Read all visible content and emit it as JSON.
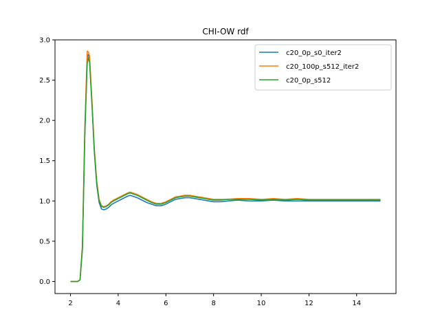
{
  "chart_data": {
    "type": "line",
    "title": "CHI-OW rdf",
    "xlabel": "",
    "ylabel": "",
    "xlim": [
      1.35,
      15.65
    ],
    "ylim": [
      -0.15,
      3.0
    ],
    "xticks": [
      2,
      4,
      6,
      8,
      10,
      12,
      14
    ],
    "yticks": [
      0.0,
      0.5,
      1.0,
      1.5,
      2.0,
      2.5,
      3.0
    ],
    "xtick_labels": [
      "2",
      "4",
      "6",
      "8",
      "10",
      "12",
      "14"
    ],
    "ytick_labels": [
      "0.0",
      "0.5",
      "1.0",
      "1.5",
      "2.0",
      "2.5",
      "3.0"
    ],
    "grid": false,
    "legend_position": "top-right",
    "x": [
      2.0,
      2.1,
      2.2,
      2.3,
      2.4,
      2.5,
      2.6,
      2.7,
      2.75,
      2.8,
      2.9,
      3.0,
      3.1,
      3.2,
      3.3,
      3.4,
      3.5,
      3.6,
      3.7,
      3.8,
      4.0,
      4.2,
      4.4,
      4.5,
      4.6,
      4.8,
      5.0,
      5.2,
      5.4,
      5.6,
      5.8,
      6.0,
      6.2,
      6.4,
      6.6,
      6.8,
      7.0,
      7.2,
      7.4,
      7.6,
      7.8,
      8.0,
      8.3,
      8.6,
      9.0,
      9.5,
      10.0,
      10.5,
      11.0,
      11.5,
      12.0,
      12.5,
      13.0,
      13.5,
      14.0,
      14.5,
      15.0
    ],
    "series": [
      {
        "name": "c20_0p_s0_iter2",
        "color": "#1f77b4",
        "values": [
          0.0,
          0.0,
          0.0,
          0.0,
          0.02,
          0.4,
          1.8,
          2.78,
          2.82,
          2.76,
          2.2,
          1.6,
          1.2,
          0.98,
          0.9,
          0.89,
          0.9,
          0.92,
          0.95,
          0.97,
          1.0,
          1.03,
          1.06,
          1.07,
          1.06,
          1.04,
          1.01,
          0.98,
          0.96,
          0.94,
          0.94,
          0.96,
          0.99,
          1.02,
          1.03,
          1.04,
          1.04,
          1.03,
          1.02,
          1.01,
          1.0,
          0.99,
          0.99,
          1.0,
          1.01,
          1.0,
          1.0,
          1.01,
          1.0,
          1.0,
          1.0,
          1.0,
          1.0,
          1.0,
          1.0,
          1.0,
          1.0
        ]
      },
      {
        "name": "c20_100p_s512_iter2",
        "color": "#ff7f0e",
        "values": [
          0.0,
          0.0,
          0.0,
          0.0,
          0.02,
          0.45,
          1.9,
          2.86,
          2.85,
          2.8,
          2.25,
          1.65,
          1.25,
          1.02,
          0.94,
          0.93,
          0.94,
          0.96,
          0.99,
          1.01,
          1.04,
          1.07,
          1.1,
          1.11,
          1.1,
          1.08,
          1.05,
          1.02,
          0.99,
          0.97,
          0.97,
          0.99,
          1.02,
          1.05,
          1.06,
          1.07,
          1.07,
          1.06,
          1.05,
          1.04,
          1.03,
          1.02,
          1.02,
          1.02,
          1.03,
          1.03,
          1.02,
          1.03,
          1.02,
          1.03,
          1.02,
          1.02,
          1.02,
          1.02,
          1.02,
          1.02,
          1.02
        ]
      },
      {
        "name": "c20_0p_s512",
        "color": "#2ca02c",
        "values": [
          0.0,
          0.0,
          0.0,
          0.0,
          0.02,
          0.42,
          1.85,
          2.7,
          2.78,
          2.72,
          2.2,
          1.62,
          1.22,
          1.0,
          0.93,
          0.92,
          0.93,
          0.95,
          0.98,
          1.0,
          1.03,
          1.06,
          1.09,
          1.1,
          1.09,
          1.07,
          1.04,
          1.01,
          0.98,
          0.96,
          0.96,
          0.98,
          1.01,
          1.04,
          1.05,
          1.06,
          1.06,
          1.05,
          1.04,
          1.03,
          1.02,
          1.01,
          1.01,
          1.02,
          1.02,
          1.02,
          1.01,
          1.02,
          1.01,
          1.02,
          1.01,
          1.01,
          1.01,
          1.01,
          1.01,
          1.01,
          1.01
        ]
      }
    ]
  }
}
